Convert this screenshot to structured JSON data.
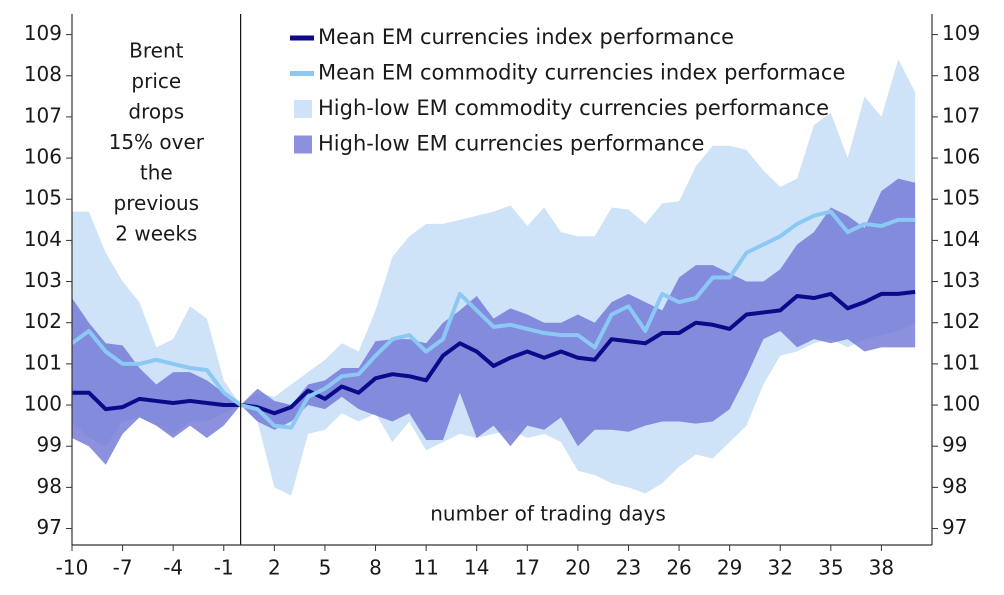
{
  "chart_data": {
    "type": "line",
    "x": [
      -10,
      -9,
      -8,
      -7,
      -6,
      -5,
      -4,
      -3,
      -2,
      -1,
      0,
      1,
      2,
      3,
      4,
      5,
      6,
      7,
      8,
      9,
      10,
      11,
      12,
      13,
      14,
      15,
      16,
      17,
      18,
      19,
      20,
      21,
      22,
      23,
      24,
      25,
      26,
      27,
      28,
      29,
      30,
      31,
      32,
      33,
      34,
      35,
      36,
      37,
      38,
      39,
      40
    ],
    "xlim": [
      -10,
      41
    ],
    "xticks": [
      -10,
      -7,
      -4,
      -1,
      2,
      5,
      8,
      11,
      14,
      17,
      20,
      23,
      26,
      29,
      32,
      35,
      38
    ],
    "ylim": [
      96.6,
      109.5
    ],
    "yticks": [
      97,
      98,
      99,
      100,
      101,
      102,
      103,
      104,
      105,
      106,
      107,
      108,
      109
    ],
    "y2lim": [
      96.6,
      109.5
    ],
    "y2ticks": [
      97,
      98,
      99,
      100,
      101,
      102,
      103,
      104,
      105,
      106,
      107,
      108,
      109
    ],
    "xlabel": "number of trading days",
    "annotation": {
      "x": 0,
      "lines": [
        "Brent",
        "price",
        "drops",
        "15% over",
        "the",
        "previous",
        "2 weeks"
      ]
    },
    "legend": "top",
    "series": [
      {
        "name": "Mean EM currencies index performance",
        "kind": "line",
        "color": "#0b0b8a",
        "values": [
          100.3,
          100.3,
          99.9,
          99.95,
          100.15,
          100.1,
          100.05,
          100.1,
          100.05,
          100.0,
          100.0,
          99.95,
          99.8,
          99.95,
          100.35,
          100.15,
          100.45,
          100.3,
          100.65,
          100.75,
          100.7,
          100.6,
          101.2,
          101.5,
          101.3,
          100.95,
          101.15,
          101.3,
          101.15,
          101.3,
          101.15,
          101.1,
          101.6,
          101.55,
          101.5,
          101.75,
          101.75,
          102.0,
          101.95,
          101.85,
          102.2,
          102.25,
          102.3,
          102.65,
          102.6,
          102.7,
          102.35,
          102.5,
          102.7,
          102.7,
          102.75
        ]
      },
      {
        "name": "Mean EM commodity currencies index performace",
        "kind": "line",
        "color": "#8cc8f4",
        "values": [
          101.5,
          101.8,
          101.3,
          101.0,
          101.0,
          101.1,
          101.0,
          100.9,
          100.85,
          100.3,
          100.0,
          99.9,
          99.5,
          99.45,
          100.2,
          100.4,
          100.7,
          100.75,
          101.2,
          101.6,
          101.7,
          101.3,
          101.6,
          102.7,
          102.3,
          101.9,
          101.95,
          101.85,
          101.75,
          101.7,
          101.7,
          101.4,
          102.2,
          102.4,
          101.8,
          102.7,
          102.5,
          102.6,
          103.1,
          103.1,
          103.7,
          103.9,
          104.1,
          104.4,
          104.6,
          104.7,
          104.2,
          104.4,
          104.35,
          104.5,
          104.5
        ]
      },
      {
        "name": "High-low EM commodity currencies performance",
        "kind": "band",
        "color": "#cfe3f8",
        "high": [
          104.7,
          104.7,
          103.7,
          103.0,
          102.5,
          101.4,
          101.6,
          102.4,
          102.1,
          100.6,
          100.0,
          100.3,
          100.2,
          100.5,
          100.8,
          101.1,
          101.5,
          101.3,
          102.3,
          103.6,
          104.1,
          104.4,
          104.4,
          104.5,
          104.6,
          104.7,
          104.85,
          104.35,
          104.8,
          104.2,
          104.1,
          104.1,
          104.8,
          104.75,
          104.4,
          104.9,
          104.95,
          105.8,
          106.3,
          106.3,
          106.2,
          105.7,
          105.3,
          105.5,
          106.8,
          107.1,
          106.0,
          107.5,
          107.0,
          108.4,
          107.6
        ],
        "low": [
          99.6,
          99.2,
          99.0,
          99.6,
          99.7,
          99.5,
          99.3,
          99.6,
          99.6,
          99.8,
          100.0,
          99.6,
          98.0,
          97.8,
          99.3,
          99.4,
          99.8,
          99.6,
          99.8,
          99.1,
          99.6,
          98.9,
          99.1,
          99.3,
          99.2,
          99.3,
          99.4,
          99.2,
          99.3,
          99.1,
          98.4,
          98.3,
          98.1,
          98.0,
          97.85,
          98.1,
          98.5,
          98.8,
          98.7,
          99.1,
          99.5,
          100.5,
          101.2,
          101.3,
          101.5,
          101.6,
          101.4,
          101.6,
          101.7,
          101.8,
          102.0
        ]
      },
      {
        "name": "High-low EM currencies performance",
        "kind": "band",
        "color": "#6f74d4",
        "high": [
          102.6,
          102.0,
          101.5,
          101.45,
          100.9,
          100.5,
          100.8,
          100.8,
          100.6,
          100.3,
          100.0,
          100.4,
          100.1,
          100.0,
          100.5,
          100.6,
          100.9,
          100.9,
          101.55,
          101.6,
          101.6,
          101.5,
          102.0,
          102.3,
          102.65,
          102.1,
          102.35,
          102.2,
          102.0,
          102.0,
          102.2,
          102.0,
          102.5,
          102.7,
          102.5,
          102.3,
          103.1,
          103.4,
          103.4,
          103.2,
          103.0,
          103.0,
          103.3,
          103.9,
          104.2,
          104.8,
          104.6,
          104.3,
          105.2,
          105.5,
          105.4
        ],
        "low": [
          99.2,
          99.0,
          98.55,
          99.3,
          99.7,
          99.5,
          99.2,
          99.5,
          99.2,
          99.5,
          100.0,
          99.6,
          99.4,
          99.6,
          100.0,
          99.9,
          100.2,
          99.9,
          99.75,
          99.6,
          99.8,
          99.15,
          99.15,
          100.3,
          99.2,
          99.5,
          99.0,
          99.5,
          99.4,
          99.7,
          99.0,
          99.4,
          99.4,
          99.35,
          99.5,
          99.6,
          99.6,
          99.55,
          99.6,
          99.9,
          100.7,
          101.6,
          101.8,
          101.4,
          101.6,
          101.5,
          101.6,
          101.3,
          101.4,
          101.4,
          101.4
        ]
      }
    ]
  }
}
